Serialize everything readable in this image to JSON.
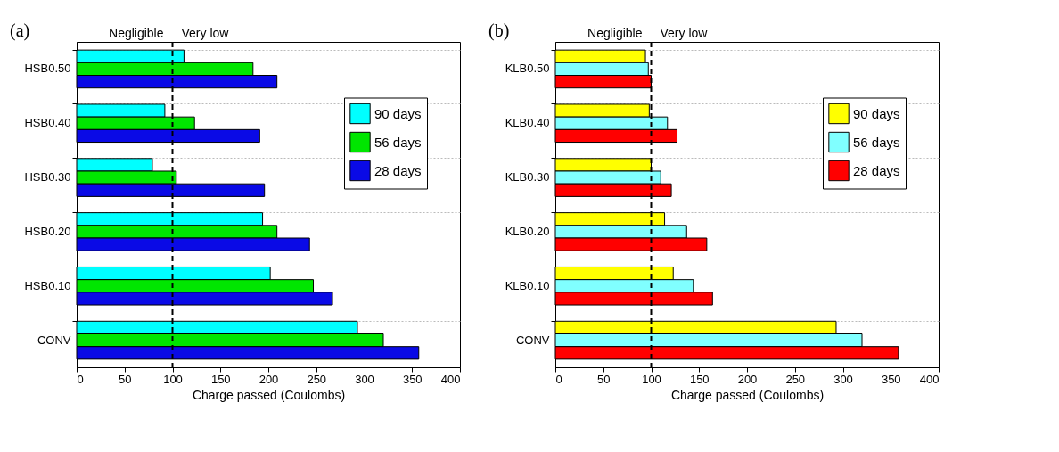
{
  "chart_data": [
    {
      "type": "bar",
      "orientation": "horizontal",
      "title": "(a)",
      "xlabel": "Charge passed (Coulombs)",
      "categories": [
        "HSB0.50",
        "HSB0.40",
        "HSB0.30",
        "HSB0.20",
        "HSB0.10",
        "CONV"
      ],
      "series": [
        {
          "name": "90 days",
          "color": "#00ffff",
          "values": [
            112,
            92,
            79,
            194,
            202,
            293
          ]
        },
        {
          "name": "56 days",
          "color": "#00e600",
          "values": [
            184,
            123,
            104,
            209,
            247,
            320
          ]
        },
        {
          "name": "28 days",
          "color": "#0a0ae6",
          "values": [
            209,
            191,
            196,
            243,
            267,
            357
          ]
        }
      ],
      "xlim": [
        0,
        400
      ],
      "xticks": [
        0,
        50,
        100,
        150,
        200,
        250,
        300,
        350,
        400
      ],
      "ref_lines": [
        {
          "axis": "x",
          "value": 100,
          "line_style": "dashed"
        }
      ],
      "annotations": [
        "Negligible",
        "Very low"
      ],
      "grid": "y",
      "legend": "right"
    },
    {
      "type": "bar",
      "orientation": "horizontal",
      "title": "(b)",
      "xlabel": "Charge passed (Coulombs)",
      "categories": [
        "KLB0.50",
        "KLB0.40",
        "KLB0.30",
        "KLB0.20",
        "KLB0.10",
        "CONV"
      ],
      "series": [
        {
          "name": "90 days",
          "color": "#ffff00",
          "values": [
            94,
            98,
            100,
            114,
            123,
            293
          ]
        },
        {
          "name": "56 days",
          "color": "#80ffff",
          "values": [
            97,
            117,
            110,
            137,
            144,
            320
          ]
        },
        {
          "name": "28 days",
          "color": "#ff0000",
          "values": [
            100,
            127,
            121,
            158,
            164,
            358
          ]
        }
      ],
      "xlim": [
        0,
        400
      ],
      "xticks": [
        0,
        50,
        100,
        150,
        200,
        250,
        300,
        350,
        400
      ],
      "ref_lines": [
        {
          "axis": "x",
          "value": 100,
          "line_style": "dashed"
        }
      ],
      "annotations": [
        "Negligible",
        "Very low"
      ],
      "grid": "y",
      "legend": "right"
    }
  ]
}
